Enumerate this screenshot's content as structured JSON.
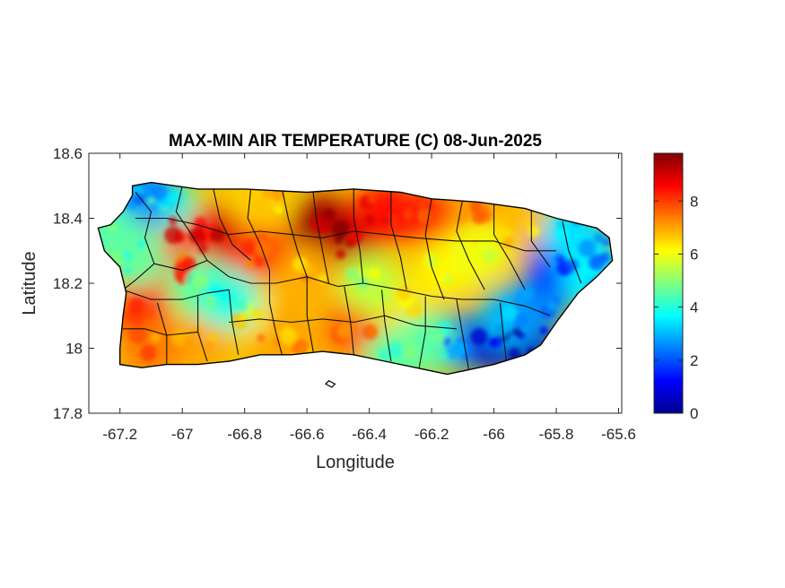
{
  "figure": {
    "title": "MAX-MIN AIR TEMPERATURE (C) 08-Jun-2025",
    "xlabel": "Longitude",
    "ylabel": "Latitude"
  },
  "chart_data": {
    "type": "heatmap",
    "title": "MAX-MIN AIR TEMPERATURE (C) 08-Jun-2025",
    "xlabel": "Longitude",
    "ylabel": "Latitude",
    "xlim": [
      -67.3,
      -65.59
    ],
    "ylim": [
      17.8,
      18.6
    ],
    "x_ticks": [
      -67.2,
      -67,
      -66.8,
      -66.6,
      -66.4,
      -66.2,
      -66,
      -65.8,
      -65.6
    ],
    "x_tick_labels": [
      "-67.2",
      "-67",
      "-66.8",
      "-66.6",
      "-66.4",
      "-66.2",
      "-66",
      "-65.8",
      "-65.6"
    ],
    "y_ticks": [
      17.8,
      18,
      18.2,
      18.4,
      18.6
    ],
    "y_tick_labels": [
      "17.8",
      "18",
      "18.2",
      "18.4",
      "18.6"
    ],
    "colorbar": {
      "colormap": "jet",
      "range": [
        0,
        9.8
      ],
      "ticks": [
        0,
        2,
        4,
        6,
        8
      ],
      "tick_labels": [
        "0",
        "2",
        "4",
        "6",
        "8"
      ]
    },
    "grid": false,
    "coastline": [
      [
        -67.27,
        18.37
      ],
      [
        -67.23,
        18.38
      ],
      [
        -67.19,
        18.42
      ],
      [
        -67.16,
        18.47
      ],
      [
        -67.16,
        18.5
      ],
      [
        -67.1,
        18.51
      ],
      [
        -66.95,
        18.49
      ],
      [
        -66.8,
        18.49
      ],
      [
        -66.6,
        18.48
      ],
      [
        -66.45,
        18.49
      ],
      [
        -66.3,
        18.48
      ],
      [
        -66.2,
        18.46
      ],
      [
        -66.05,
        18.45
      ],
      [
        -65.9,
        18.43
      ],
      [
        -65.8,
        18.4
      ],
      [
        -65.67,
        18.37
      ],
      [
        -65.63,
        18.34
      ],
      [
        -65.62,
        18.27
      ],
      [
        -65.67,
        18.22
      ],
      [
        -65.73,
        18.17
      ],
      [
        -65.8,
        18.08
      ],
      [
        -65.85,
        18.01
      ],
      [
        -65.9,
        17.98
      ],
      [
        -66.0,
        17.95
      ],
      [
        -66.1,
        17.93
      ],
      [
        -66.15,
        17.92
      ],
      [
        -66.25,
        17.94
      ],
      [
        -66.35,
        17.96
      ],
      [
        -66.45,
        17.98
      ],
      [
        -66.55,
        17.99
      ],
      [
        -66.65,
        17.98
      ],
      [
        -66.75,
        17.98
      ],
      [
        -66.85,
        17.96
      ],
      [
        -66.95,
        17.95
      ],
      [
        -67.05,
        17.95
      ],
      [
        -67.13,
        17.94
      ],
      [
        -67.2,
        17.95
      ],
      [
        -67.2,
        18.0
      ],
      [
        -67.19,
        18.1
      ],
      [
        -67.18,
        18.17
      ],
      [
        -67.2,
        18.25
      ],
      [
        -67.25,
        18.3
      ]
    ],
    "islets": [
      {
        "name": "Caja de Muertos",
        "coords": [
          [
            -66.53,
            17.9
          ],
          [
            -66.51,
            17.89
          ],
          [
            -66.52,
            17.88
          ],
          [
            -66.54,
            17.89
          ]
        ]
      }
    ],
    "value_field": [
      {
        "lon": -66.55,
        "lat": 18.38,
        "value": 9.5
      },
      {
        "lon": -66.45,
        "lat": 18.33,
        "value": 9.2
      },
      {
        "lon": -66.9,
        "lat": 18.34,
        "value": 9.0
      },
      {
        "lon": -67.0,
        "lat": 18.37,
        "value": 8.6
      },
      {
        "lon": -66.75,
        "lat": 18.3,
        "value": 8.0
      },
      {
        "lon": -66.35,
        "lat": 18.42,
        "value": 8.5
      },
      {
        "lon": -66.22,
        "lat": 18.4,
        "value": 8.3
      },
      {
        "lon": -67.14,
        "lat": 18.12,
        "value": 8.2
      },
      {
        "lon": -67.0,
        "lat": 18.26,
        "value": 8.0
      },
      {
        "lon": -66.05,
        "lat": 18.4,
        "value": 7.2
      },
      {
        "lon": -65.93,
        "lat": 18.36,
        "value": 6.8
      },
      {
        "lon": -66.6,
        "lat": 18.22,
        "value": 6.9
      },
      {
        "lon": -66.7,
        "lat": 18.05,
        "value": 7.2
      },
      {
        "lon": -66.45,
        "lat": 18.06,
        "value": 7.6
      },
      {
        "lon": -66.8,
        "lat": 18.12,
        "value": 6.4
      },
      {
        "lon": -66.95,
        "lat": 18.02,
        "value": 7.0
      },
      {
        "lon": -67.1,
        "lat": 18.0,
        "value": 7.4
      },
      {
        "lon": -66.3,
        "lat": 18.14,
        "value": 6.4
      },
      {
        "lon": -66.15,
        "lat": 18.25,
        "value": 6.2
      },
      {
        "lon": -66.05,
        "lat": 18.3,
        "value": 6.0
      },
      {
        "lon": -67.05,
        "lat": 18.45,
        "value": 4.2
      },
      {
        "lon": -67.12,
        "lat": 18.47,
        "value": 2.6
      },
      {
        "lon": -67.24,
        "lat": 18.36,
        "value": 4.5
      },
      {
        "lon": -67.15,
        "lat": 18.28,
        "value": 4.6
      },
      {
        "lon": -66.75,
        "lat": 18.46,
        "value": 6.6
      },
      {
        "lon": -66.95,
        "lat": 18.19,
        "value": 4.6
      },
      {
        "lon": -66.85,
        "lat": 18.15,
        "value": 4.0
      },
      {
        "lon": -66.4,
        "lat": 18.2,
        "value": 5.5
      },
      {
        "lon": -66.12,
        "lat": 18.02,
        "value": 2.5
      },
      {
        "lon": -66.22,
        "lat": 18.02,
        "value": 4.5
      },
      {
        "lon": -66.0,
        "lat": 18.02,
        "value": 0.8
      },
      {
        "lon": -65.9,
        "lat": 18.02,
        "value": 0.6
      },
      {
        "lon": -65.95,
        "lat": 18.1,
        "value": 3.0
      },
      {
        "lon": -65.85,
        "lat": 18.15,
        "value": 2.6
      },
      {
        "lon": -65.8,
        "lat": 18.25,
        "value": 1.8
      },
      {
        "lon": -65.7,
        "lat": 18.3,
        "value": 2.6
      },
      {
        "lon": -65.75,
        "lat": 18.36,
        "value": 3.4
      },
      {
        "lon": -65.68,
        "lat": 18.22,
        "value": 3.6
      },
      {
        "lon": -66.32,
        "lat": 17.97,
        "value": 4.6
      },
      {
        "lon": -66.65,
        "lat": 18.0,
        "value": 7.0
      }
    ],
    "municipal_boundaries": [
      [
        [
          -67.15,
          18.48
        ],
        [
          -67.1,
          18.42
        ],
        [
          -67.12,
          18.34
        ],
        [
          -67.09,
          18.26
        ]
      ],
      [
        [
          -67.09,
          18.26
        ],
        [
          -67.15,
          18.21
        ],
        [
          -67.19,
          18.18
        ]
      ],
      [
        [
          -67.09,
          18.26
        ],
        [
          -67.0,
          18.24
        ],
        [
          -66.92,
          18.27
        ]
      ],
      [
        [
          -67.0,
          18.5
        ],
        [
          -67.02,
          18.42
        ],
        [
          -66.97,
          18.35
        ],
        [
          -66.92,
          18.27
        ]
      ],
      [
        [
          -66.9,
          18.49
        ],
        [
          -66.88,
          18.4
        ],
        [
          -66.84,
          18.32
        ],
        [
          -66.78,
          18.27
        ]
      ],
      [
        [
          -66.78,
          18.49
        ],
        [
          -66.79,
          18.4
        ],
        [
          -66.75,
          18.32
        ],
        [
          -66.72,
          18.24
        ]
      ],
      [
        [
          -66.68,
          18.49
        ],
        [
          -66.66,
          18.4
        ],
        [
          -66.63,
          18.3
        ],
        [
          -66.6,
          18.22
        ]
      ],
      [
        [
          -66.58,
          18.48
        ],
        [
          -66.57,
          18.4
        ],
        [
          -66.55,
          18.3
        ],
        [
          -66.53,
          18.2
        ]
      ],
      [
        [
          -66.45,
          18.49
        ],
        [
          -66.45,
          18.4
        ],
        [
          -66.43,
          18.3
        ],
        [
          -66.42,
          18.2
        ]
      ],
      [
        [
          -66.33,
          18.48
        ],
        [
          -66.33,
          18.38
        ],
        [
          -66.3,
          18.28
        ],
        [
          -66.28,
          18.18
        ]
      ],
      [
        [
          -66.2,
          18.46
        ],
        [
          -66.22,
          18.35
        ],
        [
          -66.2,
          18.25
        ],
        [
          -66.16,
          18.15
        ]
      ],
      [
        [
          -66.1,
          18.46
        ],
        [
          -66.12,
          18.36
        ],
        [
          -66.08,
          18.27
        ],
        [
          -66.03,
          18.18
        ]
      ],
      [
        [
          -66.0,
          18.45
        ],
        [
          -66.0,
          18.35
        ],
        [
          -65.95,
          18.27
        ],
        [
          -65.9,
          18.18
        ]
      ],
      [
        [
          -65.88,
          18.43
        ],
        [
          -65.88,
          18.33
        ],
        [
          -65.82,
          18.25
        ]
      ],
      [
        [
          -65.78,
          18.39
        ],
        [
          -65.76,
          18.3
        ],
        [
          -65.72,
          18.2
        ]
      ],
      [
        [
          -67.19,
          18.18
        ],
        [
          -67.1,
          18.15
        ],
        [
          -67.0,
          18.15
        ],
        [
          -66.92,
          18.17
        ],
        [
          -66.85,
          18.18
        ]
      ],
      [
        [
          -66.92,
          18.27
        ],
        [
          -66.85,
          18.22
        ],
        [
          -66.78,
          18.2
        ],
        [
          -66.7,
          18.2
        ],
        [
          -66.6,
          18.22
        ]
      ],
      [
        [
          -66.6,
          18.22
        ],
        [
          -66.5,
          18.19
        ],
        [
          -66.42,
          18.2
        ],
        [
          -66.3,
          18.18
        ],
        [
          -66.2,
          18.16
        ],
        [
          -66.1,
          18.15
        ],
        [
          -66.0,
          18.15
        ],
        [
          -65.9,
          18.13
        ],
        [
          -65.82,
          18.1
        ]
      ],
      [
        [
          -66.72,
          18.24
        ],
        [
          -66.72,
          18.14
        ],
        [
          -66.7,
          18.05
        ],
        [
          -66.68,
          17.98
        ]
      ],
      [
        [
          -66.85,
          18.18
        ],
        [
          -66.84,
          18.08
        ],
        [
          -66.82,
          17.98
        ]
      ],
      [
        [
          -66.95,
          18.16
        ],
        [
          -66.95,
          18.05
        ],
        [
          -66.92,
          17.96
        ]
      ],
      [
        [
          -67.08,
          18.14
        ],
        [
          -67.05,
          18.04
        ],
        [
          -67.05,
          17.95
        ]
      ],
      [
        [
          -66.6,
          18.22
        ],
        [
          -66.6,
          18.1
        ],
        [
          -66.58,
          17.99
        ]
      ],
      [
        [
          -66.48,
          18.19
        ],
        [
          -66.46,
          18.08
        ],
        [
          -66.45,
          17.98
        ]
      ],
      [
        [
          -66.36,
          18.18
        ],
        [
          -66.35,
          18.08
        ],
        [
          -66.33,
          17.96
        ]
      ],
      [
        [
          -66.22,
          18.16
        ],
        [
          -66.22,
          18.05
        ],
        [
          -66.24,
          17.94
        ]
      ],
      [
        [
          -66.12,
          18.15
        ],
        [
          -66.1,
          18.04
        ],
        [
          -66.08,
          17.93
        ]
      ],
      [
        [
          -65.98,
          18.14
        ],
        [
          -65.97,
          18.04
        ],
        [
          -65.96,
          17.96
        ]
      ],
      [
        [
          -66.85,
          18.08
        ],
        [
          -66.75,
          18.09
        ],
        [
          -66.65,
          18.08
        ],
        [
          -66.55,
          18.09
        ],
        [
          -66.45,
          18.08
        ],
        [
          -66.35,
          18.1
        ],
        [
          -66.25,
          18.07
        ],
        [
          -66.12,
          18.06
        ]
      ],
      [
        [
          -67.19,
          18.06
        ],
        [
          -67.12,
          18.06
        ],
        [
          -67.05,
          18.04
        ],
        [
          -66.95,
          18.05
        ]
      ],
      [
        [
          -67.15,
          18.4
        ],
        [
          -67.05,
          18.4
        ],
        [
          -66.95,
          18.38
        ],
        [
          -66.85,
          18.35
        ],
        [
          -66.75,
          18.36
        ],
        [
          -66.65,
          18.35
        ],
        [
          -66.55,
          18.34
        ],
        [
          -66.45,
          18.36
        ],
        [
          -66.35,
          18.35
        ],
        [
          -66.25,
          18.34
        ],
        [
          -66.12,
          18.33
        ],
        [
          -66.0,
          18.33
        ],
        [
          -65.9,
          18.3
        ],
        [
          -65.8,
          18.3
        ]
      ]
    ]
  }
}
